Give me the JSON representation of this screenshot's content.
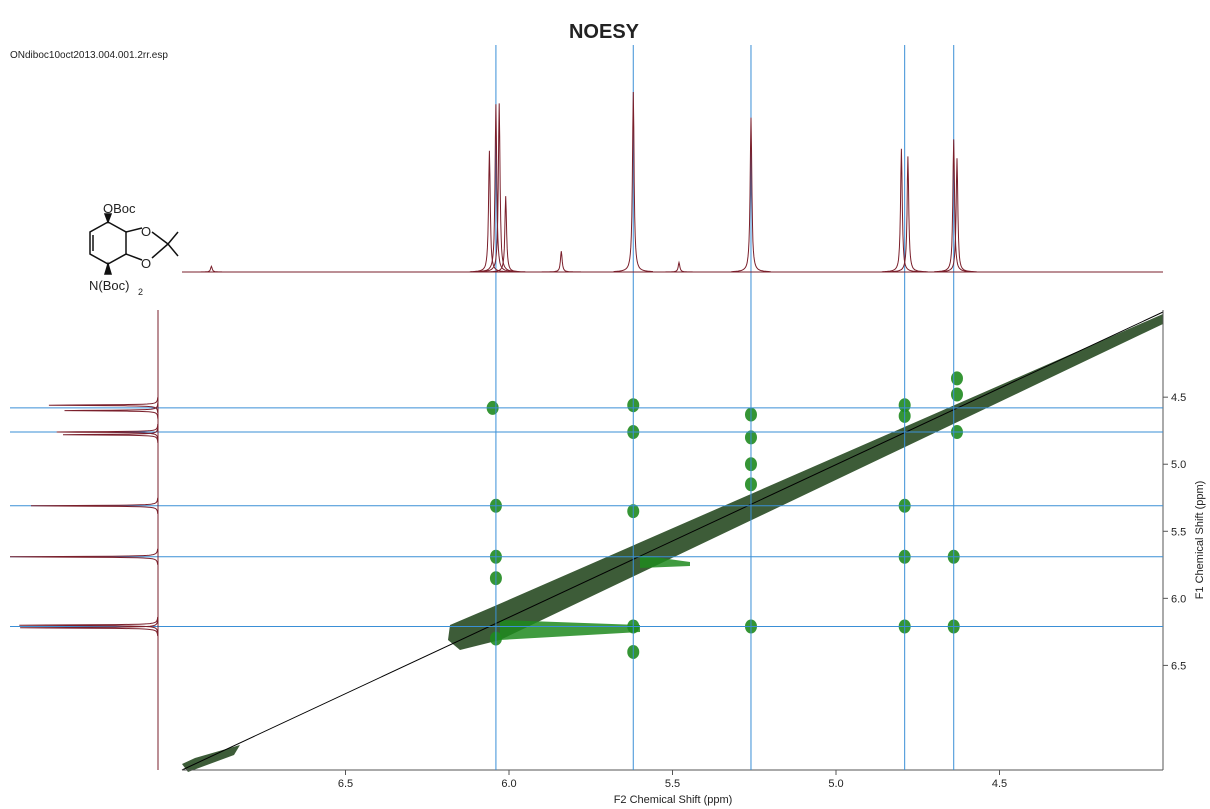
{
  "chart_data": {
    "type": "nmr2d",
    "title": "NOESY",
    "subtitle": "ONdiboc10oct2013.004.001.2rr.esp",
    "xlabel": "F2 Chemical Shift (ppm)",
    "ylabel": "F1 Chemical Shift (ppm)",
    "xlim": [
      7.0,
      4.0
    ],
    "ylim": [
      3.85,
      7.28
    ],
    "xticks": [
      6.5,
      {
        "value": 6,
        "label": "6.0"
      },
      5.5,
      {
        "value": 5,
        "label": "5.0"
      },
      4.5
    ],
    "yticks": [
      4.5,
      {
        "value": 5,
        "label": "5.0"
      },
      5.5,
      {
        "value": 6,
        "label": "6.0"
      },
      6.5
    ],
    "guide_color": "#3a8fd6",
    "f2_guides": [
      6.04,
      5.62,
      5.26,
      4.79,
      4.64
    ],
    "f1_guides": [
      4.58,
      4.76,
      5.31,
      5.69,
      6.21
    ],
    "spectrum_color": "#7a1f2b",
    "f2_spectrum": {
      "shifts": [
        6.91,
        6.06,
        6.04,
        6.03,
        6.01,
        5.84,
        5.62,
        5.48,
        5.26,
        4.8,
        4.78,
        4.64,
        4.63
      ],
      "intensities": [
        6,
        128,
        177,
        178,
        80,
        22,
        190,
        10,
        163,
        130,
        122,
        140,
        120
      ]
    },
    "f1_spectrum": {
      "shifts": [
        4.56,
        4.6,
        4.76,
        4.78,
        5.31,
        5.69,
        6.2,
        6.22
      ],
      "intensities": [
        140,
        120,
        130,
        122,
        163,
        190,
        178,
        177
      ]
    },
    "peak_color": "#1f8a1f",
    "cross_peaks": {
      "x": [
        6.05,
        5.62,
        5.26,
        5.26,
        5.62,
        4.79,
        4.79,
        4.63,
        4.63,
        4.63,
        6.04,
        4.79,
        5.26,
        5.26,
        6.04,
        4.64,
        4.79,
        5.62,
        6.04,
        5.62,
        5.26,
        4.79,
        4.64,
        6.04,
        5.62
      ],
      "y": [
        4.58,
        4.56,
        4.63,
        4.8,
        4.76,
        4.56,
        4.64,
        4.36,
        4.48,
        4.76,
        5.31,
        5.31,
        5.0,
        5.15,
        5.69,
        5.69,
        5.69,
        5.35,
        5.85,
        6.21,
        6.21,
        6.21,
        6.21,
        6.3,
        6.4
      ]
    },
    "structure": {
      "labels": [
        "OBoc",
        "O",
        "O",
        "N(Boc)"
      ],
      "subscript": "2"
    }
  }
}
